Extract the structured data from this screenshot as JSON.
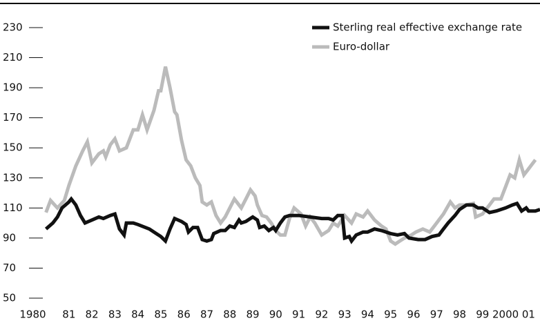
{
  "chart_data": {
    "type": "line",
    "ylim": [
      50,
      230
    ],
    "yticks": [
      50,
      70,
      90,
      110,
      130,
      150,
      170,
      190,
      210,
      230
    ],
    "xlim": [
      1978,
      2001.5
    ],
    "xticks": [
      {
        "value": 1980,
        "label": "1980"
      },
      {
        "value": 1981,
        "label": "81"
      },
      {
        "value": 1982,
        "label": "82"
      },
      {
        "value": 1983,
        "label": "83"
      },
      {
        "value": 1984,
        "label": "84"
      },
      {
        "value": 1985,
        "label": "85"
      },
      {
        "value": 1986,
        "label": "86"
      },
      {
        "value": 1987,
        "label": "87"
      },
      {
        "value": 1988,
        "label": "88"
      },
      {
        "value": 1989,
        "label": "89"
      },
      {
        "value": 1990,
        "label": "90"
      },
      {
        "value": 1991,
        "label": "91"
      },
      {
        "value": 1992,
        "label": "92"
      },
      {
        "value": 1993,
        "label": "93"
      },
      {
        "value": 1994,
        "label": "94"
      },
      {
        "value": 1995,
        "label": "95"
      },
      {
        "value": 1996,
        "label": "96"
      },
      {
        "value": 1997,
        "label": "97"
      },
      {
        "value": 1998,
        "label": "98"
      },
      {
        "value": 1999,
        "label": "99"
      },
      2000,
      {
        "value": 2001,
        "label": "01"
      }
    ],
    "legend": "upper right",
    "series": [
      {
        "name": "Sterling real effective exchange rate",
        "color": "#111111",
        "x": [
          1980.0,
          1980.3,
          1980.5,
          1980.7,
          1981.0,
          1981.1,
          1981.3,
          1981.5,
          1981.7,
          1982.0,
          1982.3,
          1982.5,
          1982.8,
          1983.0,
          1983.2,
          1983.4,
          1983.5,
          1983.8,
          1984.0,
          1984.5,
          1984.8,
          1985.0,
          1985.2,
          1985.4,
          1985.6,
          1985.9,
          1986.1,
          1986.2,
          1986.4,
          1986.6,
          1986.8,
          1987.0,
          1987.2,
          1987.3,
          1987.6,
          1987.8,
          1988.0,
          1988.2,
          1988.4,
          1988.5,
          1988.7,
          1989.0,
          1989.2,
          1989.3,
          1989.5,
          1989.7,
          1989.9,
          1990.0,
          1990.2,
          1990.4,
          1990.6,
          1991.0,
          1991.5,
          1992.0,
          1992.3,
          1992.5,
          1992.7,
          1992.9,
          1993.0,
          1993.2,
          1993.3,
          1993.5,
          1993.8,
          1994.0,
          1994.3,
          1994.6,
          1995.0,
          1995.3,
          1995.6,
          1995.8,
          1996.2,
          1996.5,
          1996.8,
          1997.1,
          1997.3,
          1997.5,
          1997.8,
          1998.0,
          1998.3,
          1998.6,
          1998.8,
          1999.0,
          1999.3,
          1999.6,
          2000.0,
          2000.3,
          2000.5,
          2000.7,
          2000.9,
          2001.0,
          2001.3,
          2001.5
        ],
        "values": [
          96,
          100,
          104,
          110,
          114,
          116,
          112,
          105,
          100,
          102,
          104,
          103,
          105,
          106,
          96,
          92,
          100,
          100,
          99,
          96,
          93,
          91,
          88,
          96,
          103,
          101,
          99,
          94,
          97,
          97,
          89,
          88,
          89,
          93,
          95,
          95,
          98,
          97,
          102,
          100,
          101,
          104,
          102,
          97,
          98,
          95,
          97,
          95,
          100,
          104,
          105,
          105,
          104,
          103,
          103,
          102,
          105,
          105,
          90,
          91,
          88,
          92,
          94,
          94,
          96,
          95,
          93,
          92,
          93,
          90,
          89,
          89,
          91,
          92,
          96,
          100,
          105,
          109,
          112,
          112,
          110,
          110,
          107,
          108,
          110,
          112,
          113,
          108,
          110,
          108,
          108,
          109
        ]
      },
      {
        "name": "Euro-dollar",
        "color": "#bbbbbb",
        "x": [
          1980.0,
          1980.2,
          1980.5,
          1980.8,
          1981.0,
          1981.3,
          1981.6,
          1981.8,
          1982.0,
          1982.3,
          1982.5,
          1982.6,
          1982.8,
          1983.0,
          1983.2,
          1983.5,
          1983.8,
          1984.0,
          1984.2,
          1984.4,
          1984.7,
          1984.9,
          1985.0,
          1985.2,
          1985.4,
          1985.6,
          1985.7,
          1985.9,
          1986.1,
          1986.3,
          1986.5,
          1986.7,
          1986.8,
          1987.0,
          1987.2,
          1987.4,
          1987.6,
          1987.8,
          1988.0,
          1988.2,
          1988.5,
          1988.7,
          1988.9,
          1989.1,
          1989.2,
          1989.4,
          1989.6,
          1989.8,
          1990.0,
          1990.2,
          1990.4,
          1990.6,
          1990.8,
          1991.1,
          1991.3,
          1991.5,
          1991.7,
          1992.0,
          1992.3,
          1992.5,
          1992.7,
          1993.0,
          1993.3,
          1993.5,
          1993.8,
          1994.0,
          1994.3,
          1994.6,
          1994.8,
          1995.0,
          1995.2,
          1995.4,
          1995.6,
          1995.9,
          1996.1,
          1996.4,
          1996.7,
          1997.0,
          1997.3,
          1997.6,
          1997.8,
          1998.0,
          1998.3,
          1998.6,
          1998.7,
          1999.0,
          1999.3,
          1999.5,
          1999.8,
          2000.0,
          2000.2,
          2000.4,
          2000.6,
          2000.8,
          2001.0,
          2001.3
        ],
        "values": [
          107,
          115,
          110,
          115,
          125,
          138,
          148,
          154,
          140,
          146,
          148,
          144,
          152,
          156,
          148,
          150,
          162,
          162,
          172,
          162,
          175,
          188,
          188,
          204,
          190,
          174,
          172,
          155,
          142,
          138,
          130,
          125,
          114,
          112,
          114,
          105,
          100,
          104,
          110,
          116,
          110,
          116,
          122,
          118,
          112,
          105,
          104,
          100,
          95,
          92,
          92,
          103,
          110,
          106,
          98,
          104,
          100,
          92,
          95,
          100,
          98,
          105,
          100,
          106,
          104,
          108,
          102,
          98,
          96,
          88,
          86,
          88,
          90,
          92,
          94,
          96,
          94,
          100,
          106,
          114,
          110,
          112,
          112,
          113,
          104,
          106,
          112,
          116,
          116,
          124,
          132,
          130,
          142,
          132,
          136,
          142
        ]
      }
    ]
  }
}
